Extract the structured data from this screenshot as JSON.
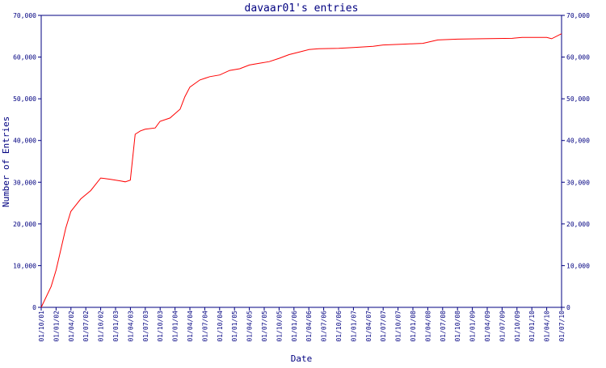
{
  "chart_data": {
    "type": "line",
    "title": "davaar01's entries",
    "xlabel": "Date",
    "ylabel": "Number of Entries",
    "ylim": [
      0,
      70000
    ],
    "yticks": [
      0,
      10000,
      20000,
      30000,
      40000,
      50000,
      60000,
      70000
    ],
    "ytick_labels": [
      "0",
      "10,000",
      "20,000",
      "30,000",
      "40,000",
      "50,000",
      "60,000",
      "70,000"
    ],
    "xlim": [
      "2001-10-01",
      "2010-07-01"
    ],
    "xtick_labels": [
      "01/10/01",
      "01/01/02",
      "01/04/02",
      "01/07/02",
      "01/10/02",
      "01/01/03",
      "01/04/03",
      "01/07/03",
      "01/10/03",
      "01/01/04",
      "01/04/04",
      "01/07/04",
      "01/10/04",
      "01/01/05",
      "01/04/05",
      "01/07/05",
      "01/10/05",
      "01/01/06",
      "01/04/06",
      "01/07/06",
      "01/10/06",
      "01/01/07",
      "01/04/07",
      "01/07/07",
      "01/10/07",
      "01/01/08",
      "01/04/08",
      "01/07/08",
      "01/10/08",
      "01/01/09",
      "01/04/09",
      "01/07/09",
      "01/10/09",
      "01/01/10",
      "01/04/10",
      "01/07/10"
    ],
    "grid": false,
    "colors": {
      "line": "#ff0000",
      "axes": "#000080",
      "text": "#000080"
    },
    "series": [
      {
        "x": [
          "2001-10-01",
          "2001-12-01",
          "2002-01-01",
          "2002-03-01",
          "2002-04-01",
          "2002-06-01",
          "2002-08-01",
          "2002-10-01",
          "2002-12-01",
          "2003-02-01",
          "2003-03-01",
          "2003-04-01",
          "2003-05-01",
          "2003-06-01",
          "2003-07-01",
          "2003-09-01",
          "2003-10-01",
          "2003-12-01",
          "2004-02-01",
          "2004-03-01",
          "2004-04-01",
          "2004-06-01",
          "2004-08-01",
          "2004-10-01",
          "2004-12-01",
          "2005-02-01",
          "2005-04-01",
          "2005-06-01",
          "2005-08-01",
          "2005-10-01",
          "2005-12-01",
          "2006-02-01",
          "2006-04-01",
          "2006-06-01",
          "2006-10-01",
          "2007-01-01",
          "2007-05-01",
          "2007-07-01",
          "2007-11-01",
          "2008-03-01",
          "2008-06-01",
          "2008-10-01",
          "2009-03-01",
          "2009-09-01",
          "2009-11-01",
          "2010-04-01",
          "2010-05-01",
          "2010-07-01"
        ],
        "y": [
          0,
          5000,
          9000,
          19000,
          23000,
          26000,
          28000,
          31000,
          30700,
          30300,
          30100,
          30500,
          41500,
          42300,
          42700,
          43000,
          44600,
          45400,
          47500,
          50500,
          52800,
          54500,
          55300,
          55700,
          56800,
          57200,
          58100,
          58500,
          58900,
          59700,
          60600,
          61200,
          61800,
          62000,
          62100,
          62300,
          62600,
          62900,
          63100,
          63300,
          64100,
          64300,
          64400,
          64500,
          64700,
          64700,
          64400,
          65600
        ]
      }
    ]
  }
}
